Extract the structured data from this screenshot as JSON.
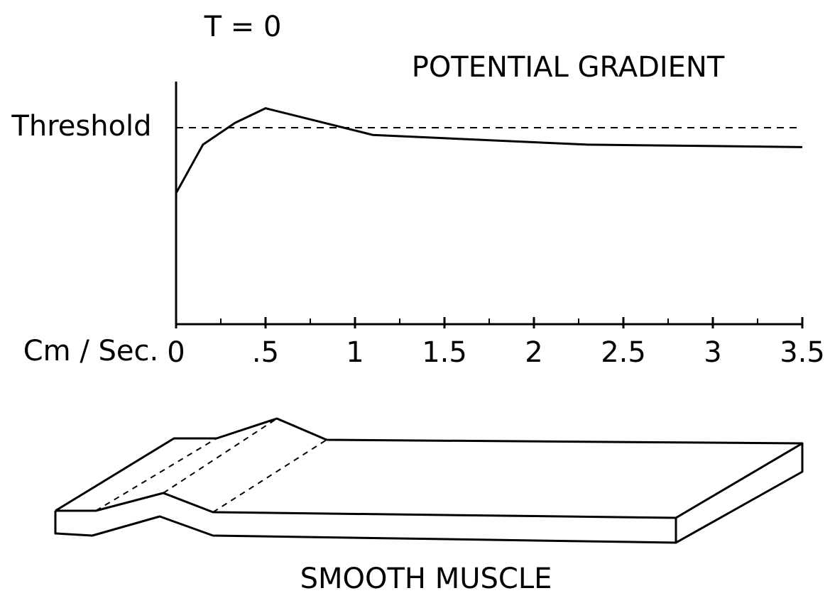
{
  "chart_data": {
    "type": "line",
    "title": "POTENTIAL GRADIENT",
    "subtitle": "T = 0",
    "x_label": "Cm / Sec.",
    "x": [
      0,
      0.15,
      0.33,
      0.5,
      1.1,
      2.3,
      3.5
    ],
    "values": [
      54,
      74,
      83,
      89,
      78,
      74,
      73
    ],
    "color": "#000000",
    "xlim": [
      0,
      3.5
    ],
    "ylim": [
      0,
      100
    ],
    "xticks": [
      0,
      {
        "value": 0.5,
        "label": ".5"
      },
      1,
      1.5,
      2,
      2.5,
      3,
      3.5
    ],
    "minor_xticks": [
      0.25,
      0.75,
      1.25,
      1.75,
      2.25,
      2.75,
      3.25
    ],
    "threshold": {
      "label": "Threshold",
      "value": 81
    },
    "caption": "SMOOTH MUSCLE"
  }
}
